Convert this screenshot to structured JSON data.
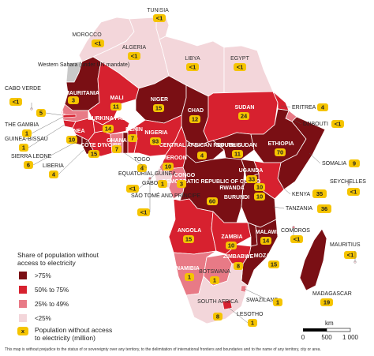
{
  "colors": {
    "gt75": "#7a0f14",
    "p50to75": "#d7212f",
    "p25to49": "#e87a86",
    "lt25": "#f3d6da",
    "no_data": "#c9c9c9",
    "badge": "#f5c400",
    "ocean": "#ffffff"
  },
  "legend": {
    "title_line1": "Share of population without",
    "title_line2": "access to electricity",
    "items": [
      {
        "label": ">75%",
        "color_key": "gt75"
      },
      {
        "label": "50% to 75%",
        "color_key": "p50to75"
      },
      {
        "label": "25% to 49%",
        "color_key": "p25to49"
      },
      {
        "label": "<25%",
        "color_key": "lt25"
      }
    ],
    "badge_symbol": "x",
    "badge_line1": "Population without access",
    "badge_line2": "to electricity (million)"
  },
  "scale": {
    "unit": "km",
    "ticks": [
      "0",
      "500",
      "1 000"
    ]
  },
  "disclaimer": "This map is without prejudice to the status of or sovereignty over any territory, to the delimitation of international frontiers and boundaries and to the name of any territory, city or area.",
  "countries": [
    {
      "name": "MOROCCO",
      "value": "<1"
    },
    {
      "name": "TUNISIA",
      "value": "<1"
    },
    {
      "name": "ALGERIA",
      "value": "<1"
    },
    {
      "name": "LIBYA",
      "value": "<1"
    },
    {
      "name": "EGYPT",
      "value": "<1"
    },
    {
      "name": "Western Sahara (under UN mandate)",
      "value": ""
    },
    {
      "name": "CABO VERDE",
      "value": "<1"
    },
    {
      "name": "MAURITANIA",
      "value": "3"
    },
    {
      "name": "MALI",
      "value": "11"
    },
    {
      "name": "NIGER",
      "value": "15"
    },
    {
      "name": "CHAD",
      "value": "12"
    },
    {
      "name": "SUDAN",
      "value": "24"
    },
    {
      "name": "ERITREA",
      "value": "4"
    },
    {
      "name": "DJIBOUTI",
      "value": "<1"
    },
    {
      "name": "SENEGAL",
      "value": "5"
    },
    {
      "name": "THE GAMBIA",
      "value": "1"
    },
    {
      "name": "GUINEA-BISSAU",
      "value": "1"
    },
    {
      "name": "GUINEA",
      "value": "10"
    },
    {
      "name": "BURKINA FASO",
      "value": "14"
    },
    {
      "name": "CÔTE D'IVOIRE",
      "value": "15"
    },
    {
      "name": "GHANA",
      "value": "7"
    },
    {
      "name": "BENIN",
      "value": "7"
    },
    {
      "name": "NIGERIA",
      "value": "93"
    },
    {
      "name": "SIERRA LEONE",
      "value": "6"
    },
    {
      "name": "LIBERIA",
      "value": "4"
    },
    {
      "name": "TOGO",
      "value": "4"
    },
    {
      "name": "CAMEROON",
      "value": "10"
    },
    {
      "name": "CENTRAL AFRICAN REPUBLIC",
      "value": "4"
    },
    {
      "name": "SOUTH SUDAN",
      "value": "11"
    },
    {
      "name": "ETHIOPIA",
      "value": "70"
    },
    {
      "name": "SOMALIA",
      "value": "9"
    },
    {
      "name": "EQUATORIAL GUINEA",
      "value": "<1"
    },
    {
      "name": "GABON",
      "value": "1"
    },
    {
      "name": "CONGO",
      "value": "3"
    },
    {
      "name": "SÃO TOMÉ AND PRÍNCIPE",
      "value": "<1"
    },
    {
      "name": "DEMOCRATIC REPUBLIC OF CONGO",
      "value": "60"
    },
    {
      "name": "UGANDA",
      "value": "33"
    },
    {
      "name": "RWANDA",
      "value": "10"
    },
    {
      "name": "BURUNDI",
      "value": "10"
    },
    {
      "name": "KENYA",
      "value": "35"
    },
    {
      "name": "SEYCHELLES",
      "value": "<1"
    },
    {
      "name": "TANZANIA",
      "value": "36"
    },
    {
      "name": "ANGOLA",
      "value": "15"
    },
    {
      "name": "ZAMBIA",
      "value": "10"
    },
    {
      "name": "MALAWI",
      "value": "14"
    },
    {
      "name": "COMOROS",
      "value": "<1"
    },
    {
      "name": "MOZAMBIQUE",
      "value": "15"
    },
    {
      "name": "MAURITIUS",
      "value": "<1"
    },
    {
      "name": "NAMIBIA",
      "value": "1"
    },
    {
      "name": "ZIMBABWE",
      "value": "8"
    },
    {
      "name": "BOTSWANA",
      "value": "1"
    },
    {
      "name": "MADAGASCAR",
      "value": "19"
    },
    {
      "name": "SOUTH AFRICA",
      "value": "8"
    },
    {
      "name": "SWAZILAND",
      "value": "1"
    },
    {
      "name": "LESOTHO",
      "value": "1"
    }
  ]
}
